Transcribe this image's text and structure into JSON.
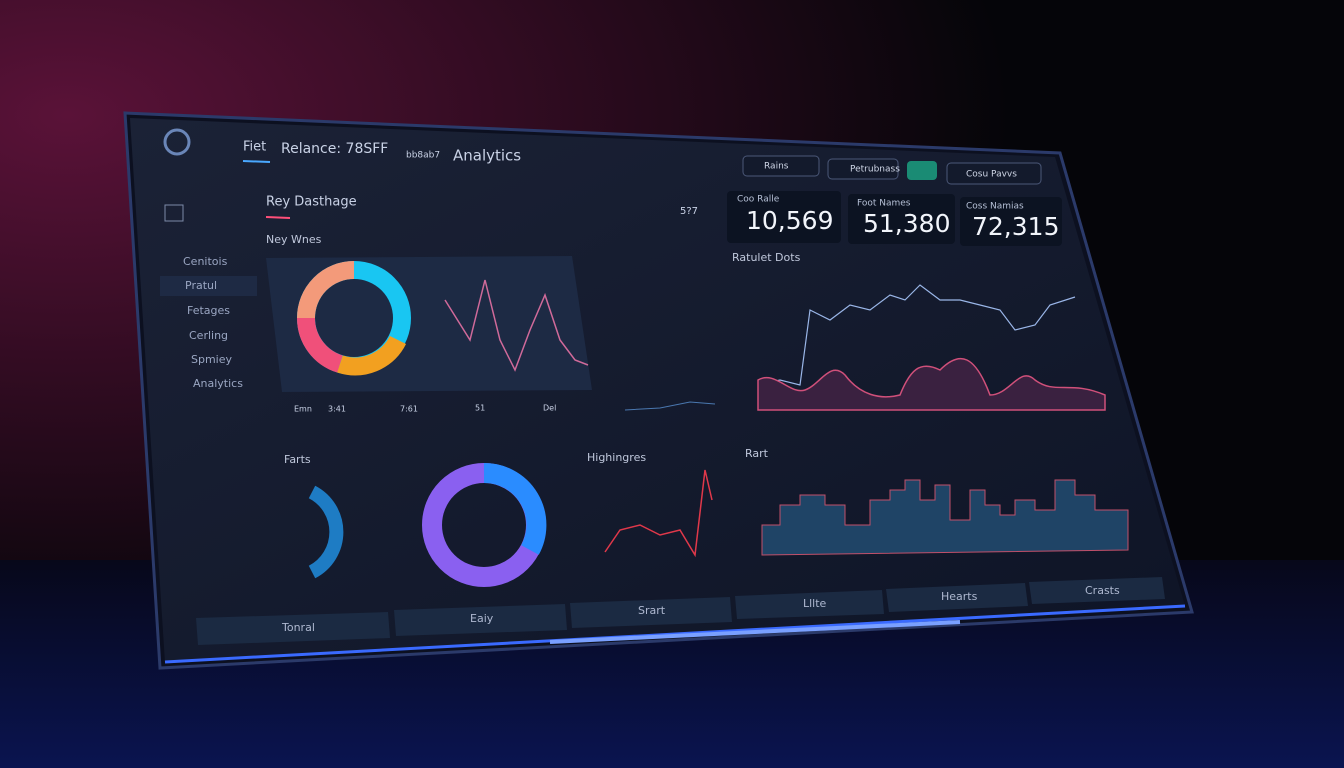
{
  "header": {
    "brand": "Fiet",
    "title": "Relance: 78SFF",
    "crumb": "bb8ab7",
    "section": "Analytics"
  },
  "controls": [
    "Rains",
    "Petrubnass",
    "Cosu Pavvs"
  ],
  "panel_title": "Rey Dasthage",
  "panel_tools": "5?7",
  "kpis": [
    {
      "label": "Coo Ralle",
      "value": "10,569"
    },
    {
      "label": "Foot Names",
      "value": "51,380"
    },
    {
      "label": "Coss Namias",
      "value": "72,315"
    }
  ],
  "nav": [
    "Cenitois",
    "Pratul",
    "Fetages",
    "Cerling",
    "Spmiey",
    "Analytics"
  ],
  "sections": [
    "Ney Wnes",
    "Ratulet Dots",
    "Farts",
    "Highingres",
    "Rart"
  ],
  "legend": [
    "Emn",
    "3:41",
    "7:61",
    "51",
    "Del"
  ],
  "tabs": [
    "Tonral",
    "Eaiy",
    "Srart",
    "Lllte",
    "Hearts",
    "Crasts"
  ]
}
